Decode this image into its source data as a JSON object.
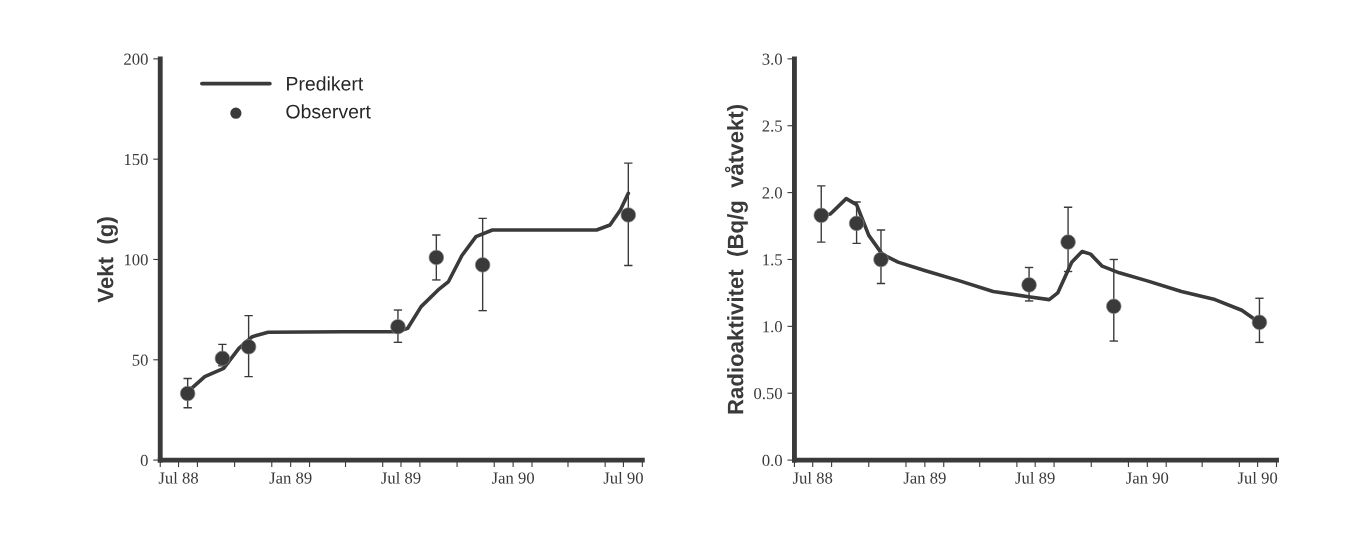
{
  "chart_data": [
    {
      "type": "line",
      "ylabel": "Vekt  (g)",
      "xlim": [
        "1988-06-01",
        "1990-08-01"
      ],
      "ylim": [
        0,
        200
      ],
      "yticks": [
        0,
        50,
        100,
        150,
        200
      ],
      "xticks": [
        {
          "value": "1988-06-01",
          "label": null
        },
        {
          "value": "1988-07-01",
          "label": "Jul 88"
        },
        {
          "value": "1988-08-01",
          "label": null
        },
        {
          "value": "1988-10-01",
          "label": null
        },
        {
          "value": "1988-12-01",
          "label": null
        },
        {
          "value": "1989-01-01",
          "label": "Jan 89"
        },
        {
          "value": "1989-02-01",
          "label": null
        },
        {
          "value": "1989-04-01",
          "label": null
        },
        {
          "value": "1989-06-01",
          "label": null
        },
        {
          "value": "1989-07-01",
          "label": "Jul 89"
        },
        {
          "value": "1989-08-01",
          "label": null
        },
        {
          "value": "1989-10-01",
          "label": null
        },
        {
          "value": "1989-12-01",
          "label": null
        },
        {
          "value": "1990-01-01",
          "label": "Jan 90"
        },
        {
          "value": "1990-02-01",
          "label": null
        },
        {
          "value": "1990-04-01",
          "label": null
        },
        {
          "value": "1990-06-01",
          "label": null
        },
        {
          "value": "1990-07-01",
          "label": "Jul 90"
        },
        {
          "value": "1990-08-01",
          "label": null
        }
      ],
      "legend": "top left",
      "grid": false,
      "series": [
        {
          "name": "Predikert",
          "color": "#3a3a3a",
          "marker": "none",
          "x": [
            "1988-07-16",
            "1988-08-13",
            "1988-09-13",
            "1988-10-08",
            "1988-10-30",
            "1988-11-25",
            "1989-03-28",
            "1989-06-25",
            "1989-07-12",
            "1989-08-03",
            "1989-08-31",
            "1989-09-17",
            "1989-10-09",
            "1989-11-01",
            "1989-11-28",
            "1990-05-18",
            "1990-06-09",
            "1990-06-26",
            "1990-07-09"
          ],
          "values": [
            34,
            41.6,
            45.7,
            55.7,
            61.5,
            63.7,
            64,
            64,
            65.7,
            76.5,
            84.8,
            89,
            102,
            111.4,
            114.7,
            114.7,
            117.2,
            124.7,
            133
          ]
        },
        {
          "name": "Observert",
          "type": "scatter",
          "color": "#3a3a3a",
          "marker": "circle",
          "x": [
            "1988-07-16",
            "1988-09-11",
            "1988-10-24",
            "1989-06-26",
            "1989-08-28",
            "1989-11-12",
            "1990-07-09"
          ],
          "values": [
            33.2,
            50.7,
            56.5,
            66.5,
            101,
            97.3,
            122.2
          ],
          "errors": [
            [
              26.1,
              40.7
            ],
            [
              47,
              57.7
            ],
            [
              41.6,
              72
            ],
            [
              58.7,
              74.8
            ],
            [
              89.8,
              112.2
            ],
            [
              74.5,
              120.5
            ],
            [
              97,
              148
            ]
          ]
        }
      ]
    },
    {
      "type": "line",
      "ylabel": "Radioaktivitet  (Bq/g  våtvekt)",
      "xlim": [
        "1988-06-01",
        "1990-08-01"
      ],
      "ylim": [
        0,
        3.0
      ],
      "yticks": [
        {
          "value": 0,
          "label": "0.0"
        },
        {
          "value": 0.5,
          "label": "0.50"
        },
        {
          "value": 1.0,
          "label": "1.0"
        },
        {
          "value": 1.5,
          "label": "1.5"
        },
        {
          "value": 2.0,
          "label": "2.0"
        },
        {
          "value": 2.5,
          "label": "2.5"
        },
        {
          "value": 3.0,
          "label": "3.0"
        }
      ],
      "xticks": [
        {
          "value": "1988-06-01",
          "label": null
        },
        {
          "value": "1988-07-01",
          "label": "Jul 88"
        },
        {
          "value": "1988-08-01",
          "label": null
        },
        {
          "value": "1988-10-01",
          "label": null
        },
        {
          "value": "1988-12-01",
          "label": null
        },
        {
          "value": "1989-01-01",
          "label": "Jan 89"
        },
        {
          "value": "1989-02-01",
          "label": null
        },
        {
          "value": "1989-04-01",
          "label": null
        },
        {
          "value": "1989-06-01",
          "label": null
        },
        {
          "value": "1989-07-01",
          "label": "Jul 89"
        },
        {
          "value": "1989-08-01",
          "label": null
        },
        {
          "value": "1989-10-01",
          "label": null
        },
        {
          "value": "1989-12-01",
          "label": null
        },
        {
          "value": "1990-01-01",
          "label": "Jan 90"
        },
        {
          "value": "1990-02-01",
          "label": null
        },
        {
          "value": "1990-04-01",
          "label": null
        },
        {
          "value": "1990-06-01",
          "label": null
        },
        {
          "value": "1990-07-01",
          "label": "Jul 90"
        },
        {
          "value": "1990-08-01",
          "label": null
        }
      ],
      "grid": false,
      "series": [
        {
          "color": "#3a3a3a",
          "marker": "none",
          "x": [
            "1988-07-15",
            "1988-07-30",
            "1988-08-25",
            "1988-09-11",
            "1988-10-01",
            "1988-10-23",
            "1988-11-18",
            "1989-01-02",
            "1989-02-27",
            "1989-04-23",
            "1989-06-23",
            "1989-07-24",
            "1989-08-07",
            "1989-08-30",
            "1989-09-16",
            "1989-09-30",
            "1989-10-19",
            "1989-11-16",
            "1990-01-01",
            "1990-02-26",
            "1990-04-22",
            "1990-06-05",
            "1990-07-03"
          ],
          "values": [
            1.83,
            1.84,
            1.955,
            1.91,
            1.68,
            1.54,
            1.48,
            1.415,
            1.34,
            1.26,
            1.22,
            1.2,
            1.25,
            1.48,
            1.56,
            1.54,
            1.45,
            1.4,
            1.34,
            1.26,
            1.2,
            1.12,
            1.03
          ]
        },
        {
          "type": "scatter",
          "color": "#3a3a3a",
          "marker": "circle",
          "x": [
            "1988-07-15",
            "1988-09-11",
            "1988-10-21",
            "1989-06-21",
            "1989-08-24",
            "1989-11-07",
            "1990-07-04"
          ],
          "values": [
            1.83,
            1.77,
            1.5,
            1.31,
            1.63,
            1.15,
            1.03
          ],
          "errors": [
            [
              1.63,
              2.05
            ],
            [
              1.62,
              1.93
            ],
            [
              1.32,
              1.72
            ],
            [
              1.19,
              1.44
            ],
            [
              1.41,
              1.89
            ],
            [
              0.89,
              1.5
            ],
            [
              0.88,
              1.21
            ]
          ]
        }
      ]
    }
  ]
}
